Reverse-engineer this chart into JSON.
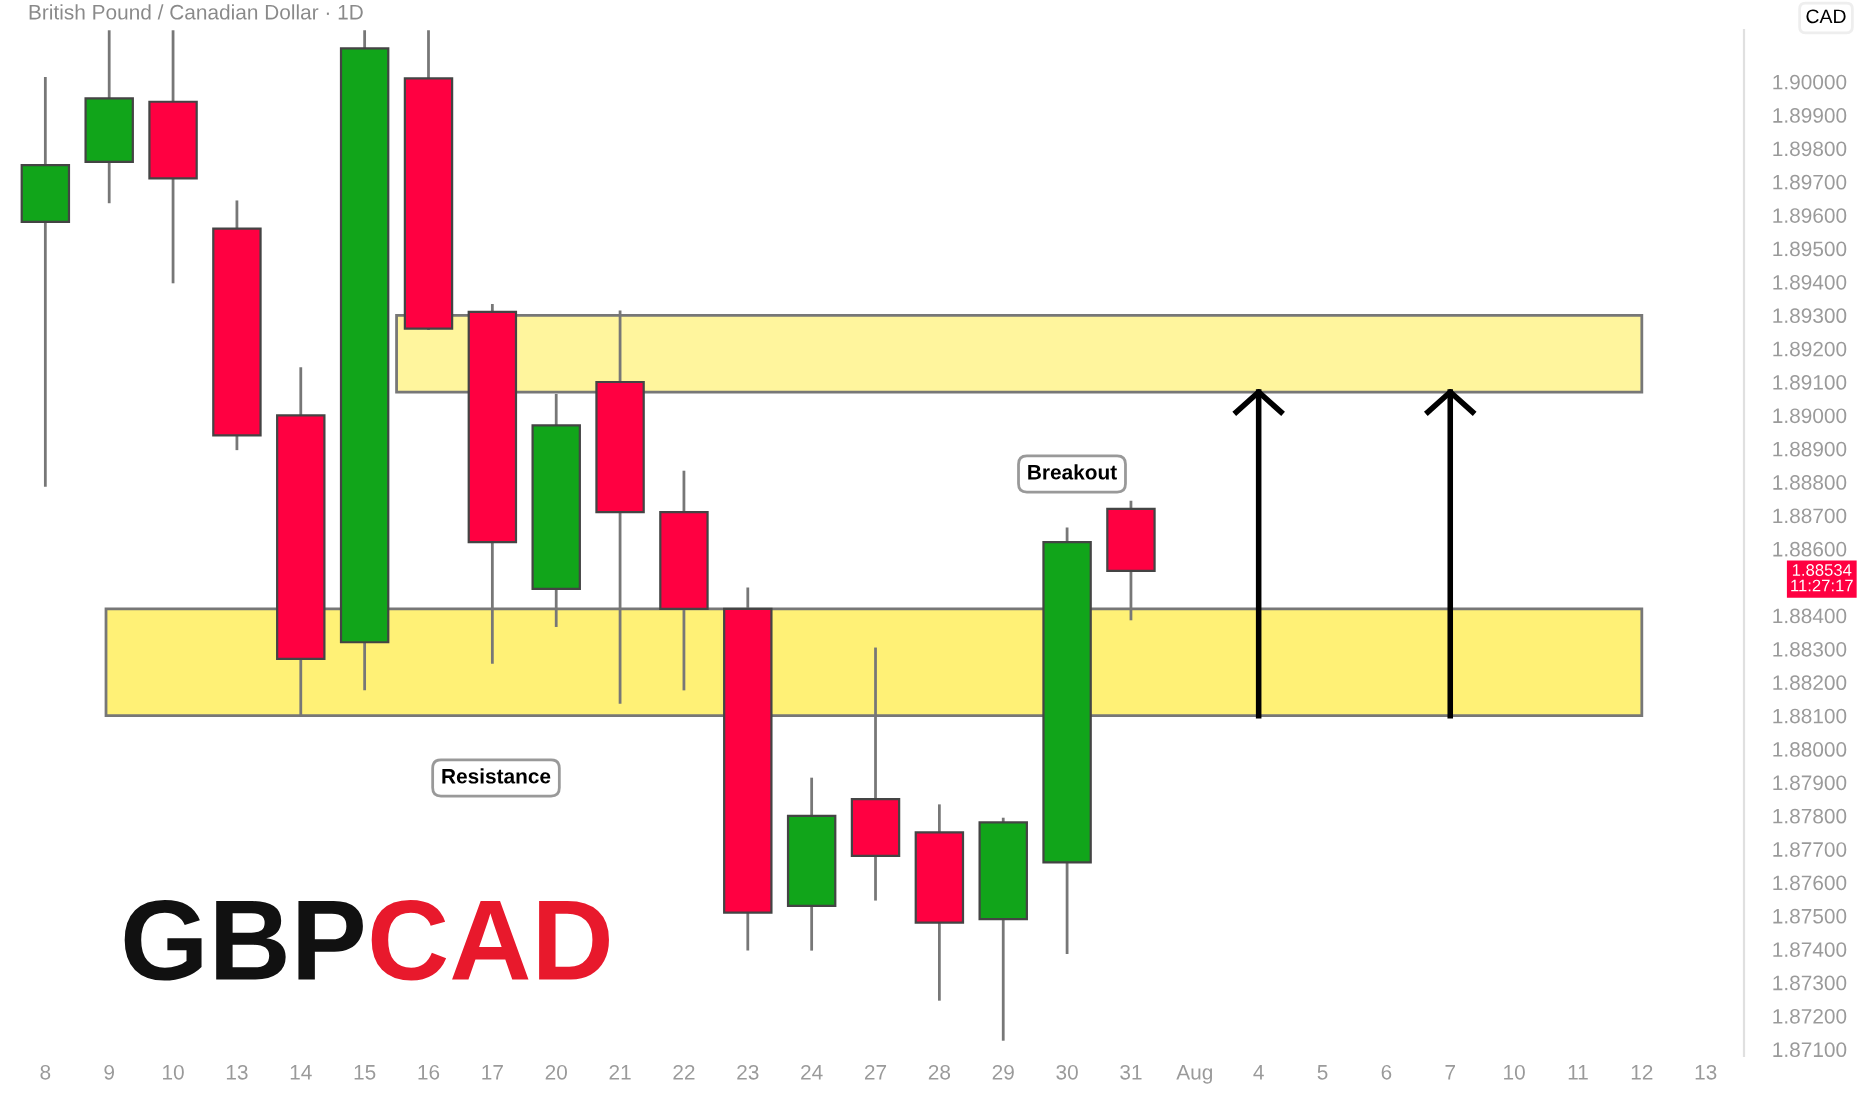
{
  "chart_data": {
    "type": "candlestick",
    "title": "British Pound / Canadian Dollar · 1D",
    "ylabel": "CAD",
    "categories": [
      "8",
      "9",
      "10",
      "13",
      "14",
      "15",
      "16",
      "17",
      "20",
      "21",
      "22",
      "23",
      "24",
      "27",
      "28",
      "29",
      "30",
      "31",
      "Aug",
      "4",
      "5",
      "6",
      "7",
      "10",
      "11",
      "12",
      "13"
    ],
    "ohlc": [
      [
        1.8958,
        1.9001,
        1.8879,
        1.8975
      ],
      [
        1.8976,
        1.9015,
        1.8964,
        1.8995
      ],
      [
        1.8994,
        1.9015,
        1.894,
        1.8971
      ],
      [
        1.8956,
        1.8964,
        1.889,
        1.8894
      ],
      [
        1.89,
        1.8914,
        1.881,
        1.8827
      ],
      [
        1.8832,
        1.9015,
        1.8818,
        1.901
      ],
      [
        1.9001,
        1.9015,
        1.8926,
        1.8926
      ],
      [
        1.8931,
        1.8933,
        1.8826,
        1.8862
      ],
      [
        1.8848,
        1.8906,
        1.8837,
        1.8897
      ],
      [
        1.891,
        1.8931,
        1.8814,
        1.8871
      ],
      [
        1.8871,
        1.8883,
        1.8818,
        1.8842
      ],
      [
        1.8842,
        1.8848,
        1.874,
        1.8751
      ],
      [
        1.8753,
        1.8791,
        1.874,
        1.878
      ],
      [
        1.8785,
        1.883,
        1.8755,
        1.8768
      ],
      [
        1.8775,
        1.8783,
        1.8725,
        1.8748
      ],
      [
        1.8749,
        1.8779,
        1.8713,
        1.8778
      ],
      [
        1.8766,
        1.8866,
        1.8739,
        1.8862
      ],
      [
        1.8872,
        1.8874,
        1.8839,
        1.88534
      ],
      null,
      null,
      null,
      null,
      null,
      null,
      null,
      null,
      null
    ],
    "colors": [
      "#11a51a",
      "#11a51a",
      "#ff0041",
      "#ff0041",
      "#ff0041",
      "#11a51a",
      "#ff0041",
      "#ff0041",
      "#11a51a",
      "#ff0041",
      "#ff0041",
      "#ff0041",
      "#11a51a",
      "#ff0041",
      "#ff0041",
      "#11a51a",
      "#11a51a",
      "#ff0041",
      null,
      null,
      null,
      null,
      null,
      null,
      null,
      null,
      null
    ],
    "ylim": [
      1.8708,
      1.90155
    ],
    "yticks": [
      {
        "value": 1.871,
        "label": "1.87100"
      },
      {
        "value": 1.872,
        "label": "1.87200"
      },
      {
        "value": 1.873,
        "label": "1.87300"
      },
      {
        "value": 1.874,
        "label": "1.87400"
      },
      {
        "value": 1.875,
        "label": "1.87500"
      },
      {
        "value": 1.876,
        "label": "1.87600"
      },
      {
        "value": 1.877,
        "label": "1.87700"
      },
      {
        "value": 1.878,
        "label": "1.87800"
      },
      {
        "value": 1.879,
        "label": "1.87900"
      },
      {
        "value": 1.88,
        "label": "1.88000"
      },
      {
        "value": 1.881,
        "label": "1.88100"
      },
      {
        "value": 1.882,
        "label": "1.88200"
      },
      {
        "value": 1.883,
        "label": "1.88300"
      },
      {
        "value": 1.884,
        "label": "1.88400"
      },
      {
        "value": 1.886,
        "label": "1.88600"
      },
      {
        "value": 1.887,
        "label": "1.88700"
      },
      {
        "value": 1.888,
        "label": "1.88800"
      },
      {
        "value": 1.889,
        "label": "1.88900"
      },
      {
        "value": 1.89,
        "label": "1.89000"
      },
      {
        "value": 1.891,
        "label": "1.89100"
      },
      {
        "value": 1.892,
        "label": "1.89200"
      },
      {
        "value": 1.893,
        "label": "1.89300"
      },
      {
        "value": 1.894,
        "label": "1.89400"
      },
      {
        "value": 1.895,
        "label": "1.89500"
      },
      {
        "value": 1.896,
        "label": "1.89600"
      },
      {
        "value": 1.897,
        "label": "1.89700"
      },
      {
        "value": 1.898,
        "label": "1.89800"
      },
      {
        "value": 1.899,
        "label": "1.89900"
      },
      {
        "value": 1.9,
        "label": "1.90000"
      }
    ],
    "bands": [
      {
        "axis": "y",
        "from": 1.8907,
        "to": 1.893,
        "color": "#fff59d"
      },
      {
        "axis": "y",
        "from": 1.881,
        "to": 1.8842,
        "color": "#fff176"
      }
    ],
    "annotations": [
      "Breakout",
      "Resistance",
      "GBPCAD",
      "1.88534\n11:27:17"
    ],
    "grid": false
  }
}
